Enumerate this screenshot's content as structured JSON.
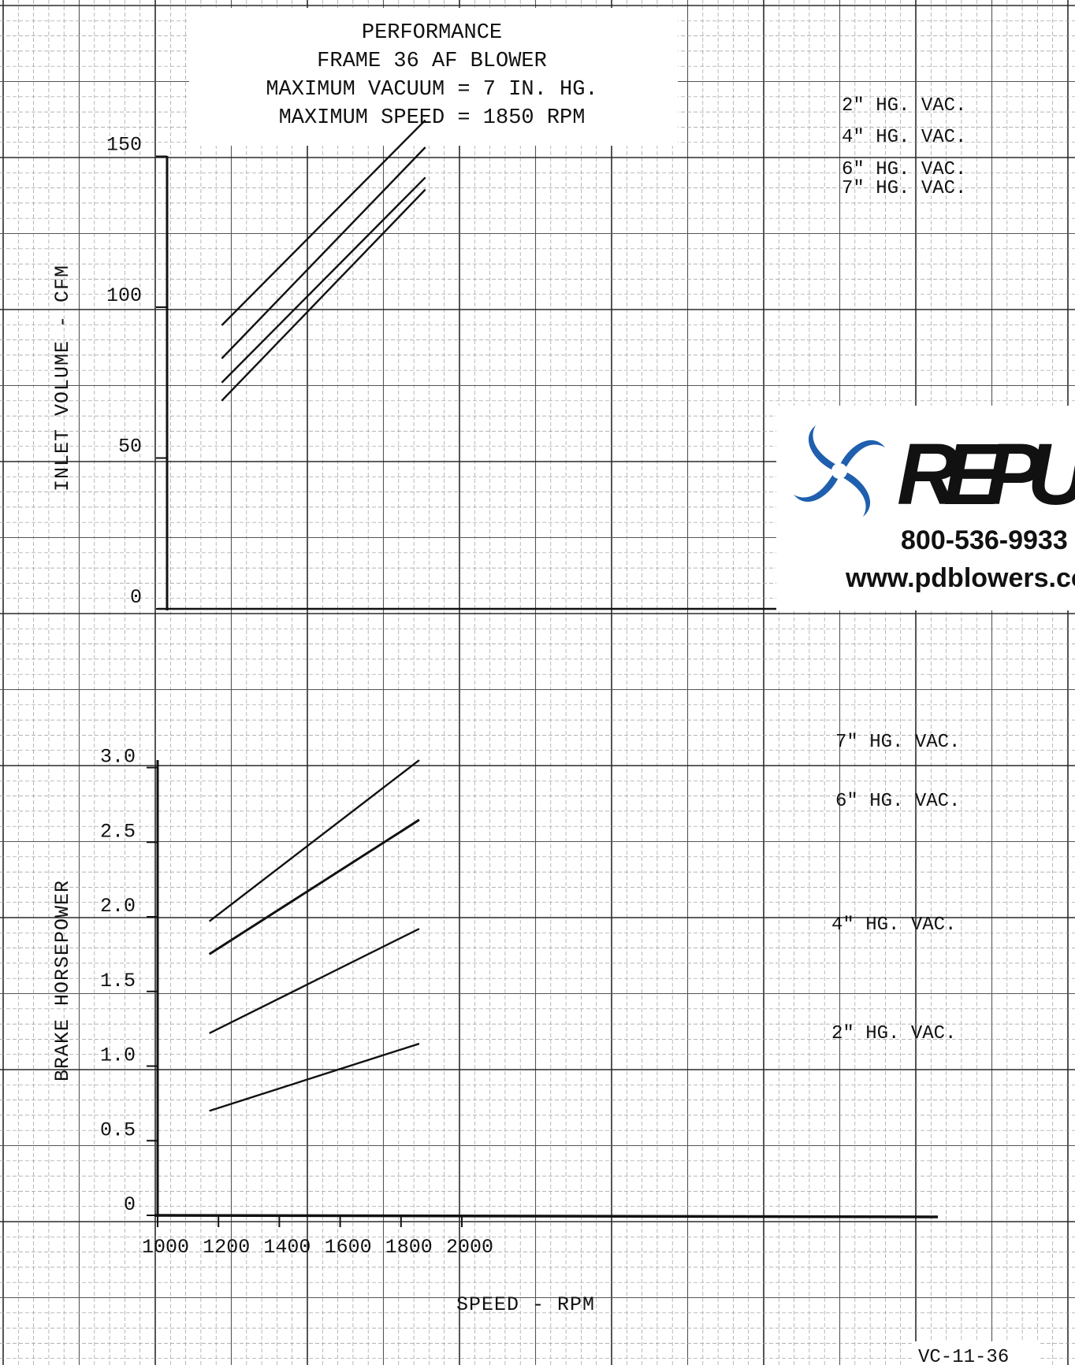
{
  "title_lines": [
    "PERFORMANCE",
    "FRAME 36 AF BLOWER",
    "MAXIMUM VACUUM = 7 IN. HG.",
    "MAXIMUM SPEED = 1850 RPM"
  ],
  "logo": {
    "wordmark": "REPUBLIC",
    "phone": "800-536-9933",
    "website": "www.pdblowers.com",
    "brand_color": "#1f5fae"
  },
  "doc_code": "VC-11-36",
  "colors": {
    "line": "#111111",
    "grid_minor": "#9a9a9a",
    "grid_major": "#2a2a2a",
    "background": "#ffffff"
  },
  "chart_data": [
    {
      "type": "line",
      "xlabel": "",
      "ylabel": "INLET VOLUME - CFM",
      "ylim": [
        0,
        150
      ],
      "xlim": [
        1000,
        2000
      ],
      "yticks": [
        "0",
        "50",
        "100",
        "150"
      ],
      "grid": true,
      "legend": "inline labels at line ends (right)",
      "series": [
        {
          "name": "2\" HG. VAC.",
          "x": [
            1180,
            1850
          ],
          "values": [
            94,
            162
          ]
        },
        {
          "name": "4\" HG. VAC.",
          "x": [
            1180,
            1850
          ],
          "values": [
            83,
            153
          ]
        },
        {
          "name": "6\" HG. VAC.",
          "x": [
            1180,
            1850
          ],
          "values": [
            75,
            143
          ]
        },
        {
          "name": "7\" HG. VAC.",
          "x": [
            1180,
            1850
          ],
          "values": [
            69,
            139
          ]
        }
      ]
    },
    {
      "type": "line",
      "xlabel": "SPEED - RPM",
      "ylabel": "BRAKE HORSEPOWER",
      "ylim": [
        0,
        3.0
      ],
      "xlim": [
        1000,
        2000
      ],
      "xticks": [
        "1000",
        "1200",
        "1400",
        "1600",
        "1800",
        "2000"
      ],
      "yticks": [
        "0",
        "0.5",
        "1.0",
        "1.5",
        "2.0",
        "2.5",
        "3.0"
      ],
      "grid": true,
      "legend": "inline labels at line ends (right)",
      "series": [
        {
          "name": "7\" HG. VAC.",
          "x": [
            1170,
            1860
          ],
          "values": [
            1.97,
            3.05
          ]
        },
        {
          "name": "6\" HG. VAC.",
          "x": [
            1170,
            1860
          ],
          "values": [
            1.75,
            2.65
          ]
        },
        {
          "name": "4\" HG. VAC.",
          "x": [
            1170,
            1860
          ],
          "values": [
            1.22,
            1.92
          ]
        },
        {
          "name": "2\" HG. VAC.",
          "x": [
            1170,
            1860
          ],
          "values": [
            0.7,
            1.15
          ]
        }
      ]
    }
  ]
}
